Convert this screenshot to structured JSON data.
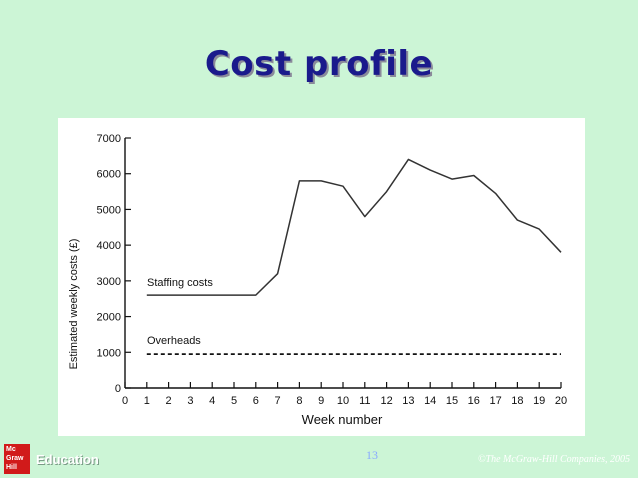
{
  "slide": {
    "title": "Cost profile",
    "page_number": "13",
    "copyright": "©The McGraw-Hill Companies, 2005",
    "logo_lines": [
      "Mc",
      "Graw",
      "Hill"
    ],
    "brand_label": "Education"
  },
  "colors": {
    "background": "#ccf5d6",
    "title": "#1a1a8c",
    "line": "#333333",
    "logo": "#d11a1a"
  },
  "chart_data": {
    "type": "line",
    "xlabel": "Week number",
    "ylabel": "Estimated weekly costs (£)",
    "xlim": [
      0,
      20
    ],
    "ylim": [
      0,
      7000
    ],
    "xticks": [
      "0",
      "1",
      "2",
      "3",
      "4",
      "5",
      "6",
      "7",
      "8",
      "9",
      "10",
      "11",
      "12",
      "13",
      "14",
      "15",
      "16",
      "17",
      "18",
      "19",
      "20"
    ],
    "yticks": [
      "0",
      "1000",
      "2000",
      "3000",
      "4000",
      "5000",
      "6000",
      "7000"
    ],
    "grid": false,
    "series": [
      {
        "name": "Staffing costs",
        "style": "solid",
        "x": [
          1,
          6,
          7,
          8,
          9,
          10,
          11,
          12,
          13,
          14,
          15,
          16,
          17,
          18,
          19,
          20
        ],
        "y": [
          2600,
          2600,
          3200,
          5800,
          5800,
          5650,
          4800,
          5500,
          6400,
          6100,
          5850,
          5950,
          5450,
          4700,
          4450,
          3800
        ]
      },
      {
        "name": "Overheads",
        "style": "dashed",
        "x": [
          1,
          20
        ],
        "y": [
          950,
          950
        ]
      }
    ]
  }
}
